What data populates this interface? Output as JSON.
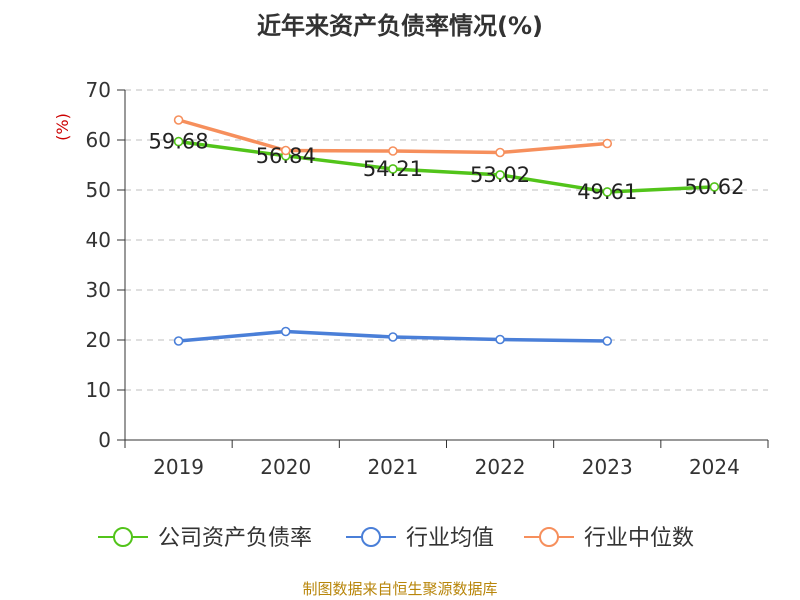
{
  "title": "近年来资产负债率情况(%)",
  "source": "制图数据来自恒生聚源数据库",
  "colors": {
    "company": "#52c41a",
    "avg": "#4a7fd8",
    "median": "#f68f5c",
    "unit": "#cc0000",
    "axis": "#333333",
    "grid": "#cccccc",
    "text": "#333333"
  },
  "chart_data": {
    "type": "line",
    "title": "近年来资产负债率情况(%)",
    "ylabel": "(%)",
    "xlabel": "",
    "ylim": [
      0,
      70
    ],
    "yticks": [
      0,
      10,
      20,
      30,
      40,
      50,
      60,
      70
    ],
    "grid": true,
    "legend_position": "bottom",
    "categories": [
      "2019",
      "2020",
      "2021",
      "2022",
      "2023",
      "2024"
    ],
    "series": [
      {
        "name": "公司资产负债率",
        "color": "#52c41a",
        "values": [
          59.68,
          56.84,
          54.21,
          53.02,
          49.61,
          50.62
        ],
        "show_labels": true
      },
      {
        "name": "行业均值",
        "color": "#4a7fd8",
        "values": [
          19.8,
          21.7,
          20.6,
          20.1,
          19.8,
          null
        ],
        "show_labels": false
      },
      {
        "name": "行业中位数",
        "color": "#f68f5c",
        "values": [
          64.0,
          57.9,
          57.8,
          57.5,
          59.3,
          null
        ],
        "show_labels": false
      }
    ]
  }
}
